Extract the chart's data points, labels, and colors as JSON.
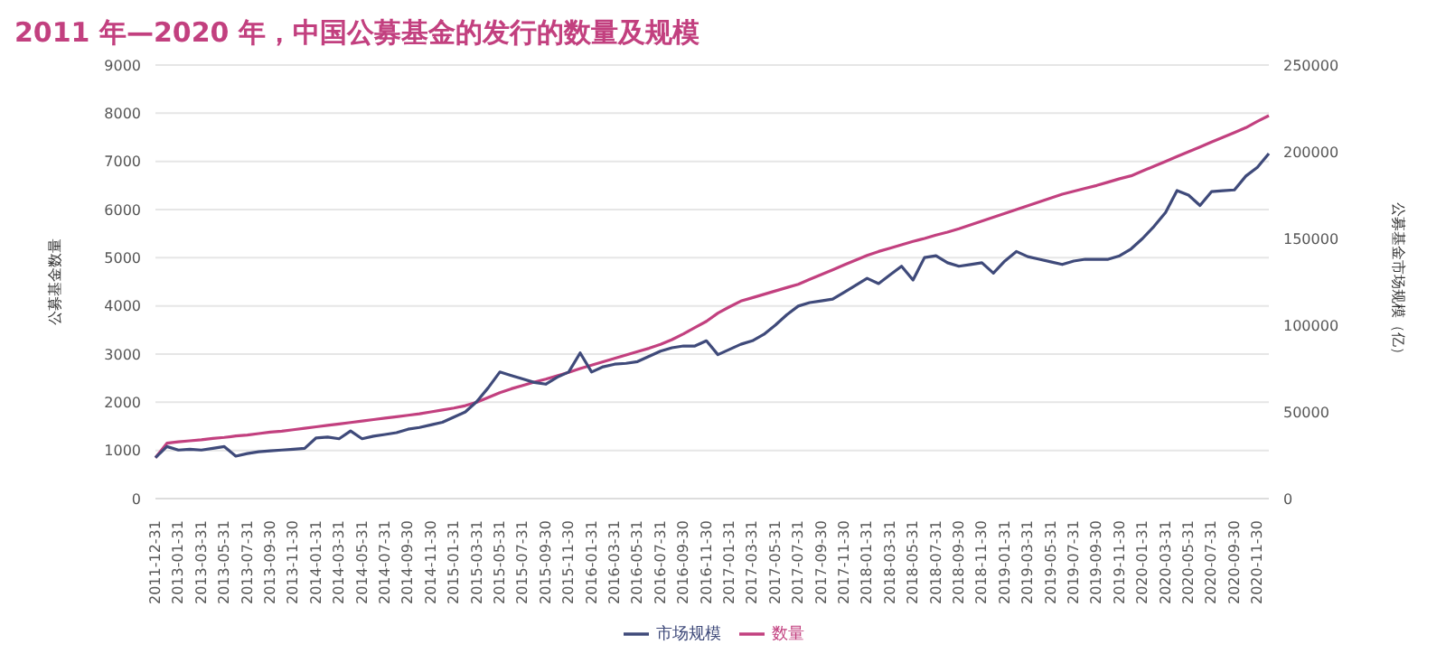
{
  "chart_data": {
    "type": "line",
    "title": "2011 年—2020 年，中国公募基金的发行的数量及规模",
    "ylabel": "公募基金数量",
    "y2label": "公募基金市场规模（亿）",
    "categories": [
      "2011-12-31",
      null,
      "2013-01-31",
      null,
      "2013-03-31",
      null,
      "2013-05-31",
      null,
      "2013-07-31",
      null,
      "2013-09-30",
      null,
      "2013-11-30",
      null,
      "2014-01-31",
      null,
      "2014-03-31",
      null,
      "2014-05-31",
      null,
      "2014-07-31",
      null,
      "2014-09-30",
      null,
      "2014-11-30",
      null,
      "2015-01-31",
      null,
      "2015-03-31",
      null,
      "2015-05-31",
      null,
      "2015-07-31",
      null,
      "2015-09-30",
      null,
      "2015-11-30",
      null,
      "2016-01-31",
      null,
      "2016-03-31",
      null,
      "2016-05-31",
      null,
      "2016-07-31",
      null,
      "2016-09-30",
      null,
      "2016-11-30",
      null,
      "2017-01-31",
      null,
      "2017-03-31",
      null,
      "2017-05-31",
      null,
      "2017-07-31",
      null,
      "2017-09-30",
      null,
      "2017-11-30",
      null,
      "2018-01-31",
      null,
      "2018-03-31",
      null,
      "2018-05-31",
      null,
      "2018-07-31",
      null,
      "2018-09-30",
      null,
      "2018-11-30",
      null,
      "2019-01-31",
      null,
      "2019-03-31",
      null,
      "2019-05-31",
      null,
      "2019-07-31",
      null,
      "2019-09-30",
      null,
      "2019-11-30",
      null,
      "2020-01-31",
      null,
      "2020-03-31",
      null,
      "2020-05-31",
      null,
      "2020-07-31",
      null,
      "2020-09-30",
      null,
      "2020-11-30",
      null
    ],
    "series": [
      {
        "name": "数量",
        "color": "#c2407f",
        "values": [
          850,
          1150,
          1180,
          1200,
          1220,
          1250,
          1270,
          1300,
          1320,
          1350,
          1380,
          1400,
          1430,
          1460,
          1490,
          1520,
          1550,
          1580,
          1610,
          1640,
          1670,
          1700,
          1730,
          1760,
          1800,
          1840,
          1880,
          1930,
          2000,
          2100,
          2200,
          2280,
          2350,
          2420,
          2480,
          2550,
          2620,
          2700,
          2770,
          2840,
          2910,
          2980,
          3050,
          3120,
          3200,
          3300,
          3420,
          3550,
          3680,
          3850,
          3980,
          4100,
          4170,
          4240,
          4310,
          4380,
          4450,
          4550,
          4650,
          4750,
          4850,
          4950,
          5050,
          5130,
          5200,
          5270,
          5340,
          5400,
          5470,
          5530,
          5600,
          5680,
          5760,
          5840,
          5920,
          6000,
          6080,
          6160,
          6240,
          6320,
          6380,
          6440,
          6500,
          6570,
          6640,
          6700,
          6800,
          6900,
          7000,
          7100,
          7200,
          7300,
          7400,
          7500,
          7600,
          7700,
          7830,
          7950
        ]
      },
      {
        "name": "市场规模",
        "color": "#3f4a7a",
        "axis": "y2",
        "values": [
          23600,
          30000,
          28000,
          28500,
          28000,
          29000,
          30000,
          24500,
          26000,
          27000,
          27500,
          28000,
          28500,
          29000,
          35000,
          35500,
          34500,
          39000,
          34500,
          36000,
          37000,
          38000,
          40000,
          41000,
          42500,
          44000,
          47000,
          50000,
          56000,
          64000,
          73000,
          71000,
          69000,
          67000,
          66000,
          70000,
          73000,
          84000,
          73000,
          76000,
          77500,
          78000,
          79000,
          82000,
          85000,
          87000,
          88000,
          88000,
          91000,
          83000,
          86000,
          89000,
          91000,
          94700,
          100000,
          106000,
          111000,
          113000,
          114000,
          115000,
          119000,
          123000,
          127000,
          124000,
          129000,
          134000,
          126000,
          139000,
          140000,
          136000,
          134000,
          135000,
          136000,
          130000,
          137000,
          142500,
          139500,
          138000,
          136500,
          135000,
          137000,
          138000,
          138000,
          138000,
          140000,
          144000,
          150000,
          157000,
          165000,
          177600,
          175000,
          169000,
          177000,
          177500,
          178000,
          186000,
          191000,
          199000
        ]
      }
    ],
    "ylim": [
      0,
      9000
    ],
    "yticks": [
      0,
      1000,
      2000,
      3000,
      4000,
      5000,
      6000,
      7000,
      8000,
      9000
    ],
    "y2lim": [
      0,
      250000
    ],
    "y2ticks": [
      0,
      50000,
      100000,
      150000,
      200000,
      250000
    ],
    "grid": "y",
    "legend": "bottom",
    "marker": "none",
    "line_style": "solid"
  }
}
